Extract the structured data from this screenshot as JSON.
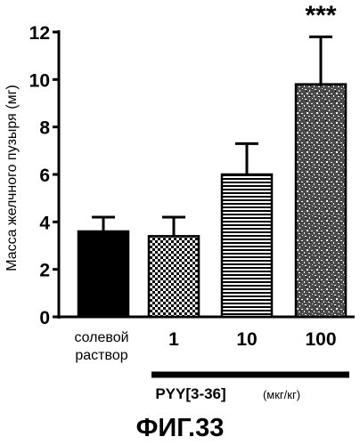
{
  "chart_data": {
    "type": "bar",
    "ylabel": "Масса желчного пузыря (мг)",
    "ylim": [
      0,
      12
    ],
    "yticks": [
      "0",
      "2",
      "4",
      "6",
      "8",
      "10",
      "12"
    ],
    "categories": [
      "солевой раствор",
      "1",
      "10",
      "100"
    ],
    "categories_lines": [
      [
        "солевой",
        "раствор"
      ],
      [
        "1"
      ],
      [
        "10"
      ],
      [
        "100"
      ]
    ],
    "values": [
      3.6,
      3.4,
      6.0,
      9.8
    ],
    "errors": [
      0.6,
      0.8,
      1.3,
      2.0
    ],
    "fills": [
      "solid",
      "checker",
      "hstripes",
      "stipple"
    ],
    "annotations": [
      {
        "category": "100",
        "text": "***"
      }
    ],
    "group_label": "PYY[3-36]",
    "group_unit": "(мкг/кг)",
    "grid": false
  },
  "caption": "ФИГ.33"
}
